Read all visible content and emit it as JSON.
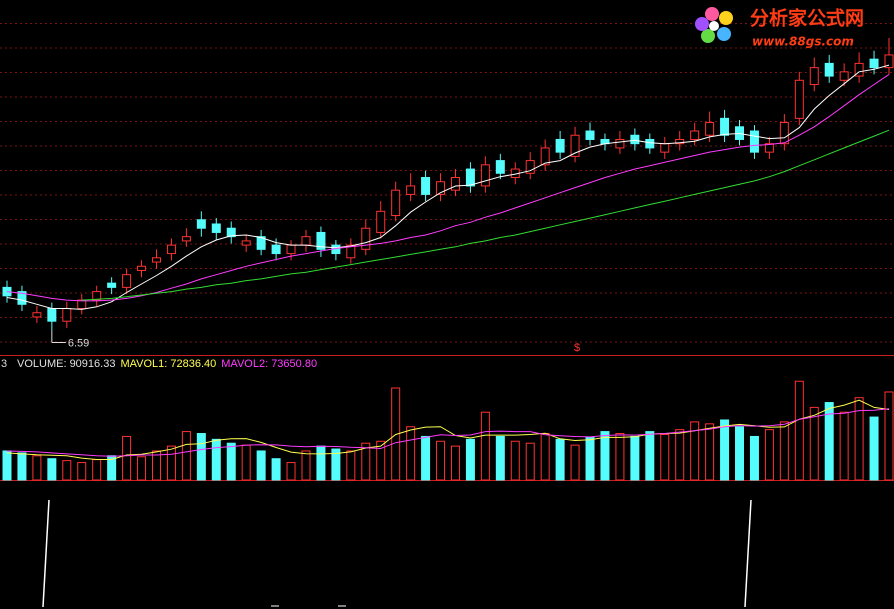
{
  "chart_data": {
    "type": "candlestick",
    "open": [
      7.1,
      7.05,
      6.75,
      6.85,
      6.7,
      6.85,
      6.95,
      7.15,
      7.1,
      7.3,
      7.4,
      7.5,
      7.65,
      7.9,
      7.85,
      7.8,
      7.6,
      7.7,
      7.6,
      7.5,
      7.6,
      7.75,
      7.6,
      7.45,
      7.55,
      7.75,
      7.95,
      8.2,
      8.4,
      8.2,
      8.25,
      8.5,
      8.3,
      8.6,
      8.4,
      8.45,
      8.55,
      8.85,
      8.65,
      8.95,
      8.85,
      8.75,
      8.9,
      8.85,
      8.7,
      8.8,
      8.85,
      8.9,
      9.1,
      9.0,
      8.95,
      8.7,
      8.8,
      9.1,
      9.5,
      9.75,
      9.55,
      9.6,
      9.8,
      9.7
    ],
    "high": [
      7.18,
      7.12,
      6.88,
      6.92,
      6.93,
      7.02,
      7.12,
      7.22,
      7.32,
      7.42,
      7.55,
      7.68,
      7.8,
      8.0,
      7.92,
      7.88,
      7.72,
      7.78,
      7.68,
      7.66,
      7.78,
      7.82,
      7.66,
      7.68,
      7.9,
      8.12,
      8.35,
      8.45,
      8.48,
      8.45,
      8.5,
      8.58,
      8.65,
      8.68,
      8.58,
      8.7,
      8.85,
      8.95,
      9.0,
      9.05,
      8.92,
      8.95,
      8.98,
      8.92,
      8.88,
      8.95,
      9.05,
      9.18,
      9.2,
      9.08,
      9.02,
      8.88,
      9.15,
      9.65,
      9.82,
      9.85,
      9.75,
      9.88,
      9.9,
      10.05
    ],
    "low": [
      6.92,
      6.82,
      6.68,
      6.59,
      6.62,
      6.78,
      6.88,
      7.02,
      7.02,
      7.22,
      7.32,
      7.42,
      7.58,
      7.7,
      7.66,
      7.62,
      7.52,
      7.48,
      7.42,
      7.42,
      7.52,
      7.46,
      7.42,
      7.38,
      7.48,
      7.68,
      7.88,
      8.12,
      8.12,
      8.12,
      8.18,
      8.22,
      8.22,
      8.38,
      8.32,
      8.38,
      8.48,
      8.62,
      8.58,
      8.78,
      8.72,
      8.68,
      8.72,
      8.68,
      8.62,
      8.72,
      8.78,
      8.82,
      8.82,
      8.78,
      8.62,
      8.62,
      8.72,
      9.02,
      9.42,
      9.52,
      9.48,
      9.52,
      9.62,
      9.62
    ],
    "close": [
      7.0,
      6.9,
      6.8,
      6.7,
      6.85,
      6.95,
      7.05,
      7.1,
      7.25,
      7.35,
      7.45,
      7.6,
      7.7,
      7.8,
      7.75,
      7.7,
      7.65,
      7.55,
      7.5,
      7.6,
      7.7,
      7.55,
      7.5,
      7.6,
      7.8,
      8.0,
      8.25,
      8.3,
      8.2,
      8.35,
      8.4,
      8.3,
      8.55,
      8.45,
      8.5,
      8.6,
      8.75,
      8.7,
      8.9,
      8.85,
      8.8,
      8.85,
      8.8,
      8.75,
      8.8,
      8.85,
      8.95,
      9.05,
      8.9,
      8.85,
      8.7,
      8.8,
      9.05,
      9.55,
      9.7,
      9.6,
      9.65,
      9.75,
      9.7,
      9.85
    ],
    "volume": [
      30000,
      28000,
      25000,
      22000,
      20000,
      18000,
      21000,
      25000,
      45000,
      24000,
      30000,
      35000,
      50000,
      48000,
      42000,
      38000,
      36000,
      30000,
      22000,
      18000,
      30000,
      35000,
      32000,
      30000,
      38000,
      40000,
      95000,
      55000,
      45000,
      40000,
      35000,
      42000,
      70000,
      45000,
      40000,
      38000,
      48000,
      42000,
      36000,
      44000,
      50000,
      48000,
      45000,
      50000,
      47000,
      52000,
      60000,
      58000,
      62000,
      55000,
      45000,
      52000,
      60000,
      102000,
      75000,
      80000,
      70000,
      85000,
      65000,
      90916.33
    ],
    "ma_lines": [
      {
        "color": "#ffffff",
        "values": [
          6.98,
          6.95,
          6.9,
          6.85,
          6.85,
          6.84,
          6.87,
          6.93,
          7.04,
          7.14,
          7.24,
          7.35,
          7.47,
          7.58,
          7.66,
          7.71,
          7.72,
          7.69,
          7.63,
          7.6,
          7.6,
          7.58,
          7.57,
          7.59,
          7.63,
          7.69,
          7.83,
          7.99,
          8.11,
          8.22,
          8.3,
          8.31,
          8.36,
          8.41,
          8.44,
          8.48,
          8.57,
          8.6,
          8.69,
          8.76,
          8.8,
          8.82,
          8.84,
          8.81,
          8.8,
          8.81,
          8.83,
          8.88,
          8.91,
          8.92,
          8.89,
          8.86,
          8.87,
          8.99,
          9.21,
          9.37,
          9.51,
          9.65,
          9.68,
          9.73
        ]
      },
      {
        "color": "#ff3cff",
        "values": [
          7.05,
          7.03,
          7.0,
          6.97,
          6.95,
          6.94,
          6.94,
          6.95,
          6.97,
          7.0,
          7.04,
          7.09,
          7.14,
          7.2,
          7.25,
          7.3,
          7.35,
          7.39,
          7.43,
          7.47,
          7.5,
          7.53,
          7.56,
          7.58,
          7.6,
          7.62,
          7.65,
          7.69,
          7.72,
          7.77,
          7.83,
          7.87,
          7.93,
          7.98,
          8.04,
          8.1,
          8.16,
          8.22,
          8.28,
          8.34,
          8.4,
          8.45,
          8.5,
          8.54,
          8.58,
          8.62,
          8.66,
          8.7,
          8.73,
          8.76,
          8.78,
          8.79,
          8.81,
          8.9,
          9.0,
          9.12,
          9.25,
          9.38,
          9.5,
          9.62
        ]
      },
      {
        "color": "#32dc32",
        "values": [
          null,
          null,
          null,
          null,
          null,
          6.95,
          6.96,
          6.97,
          6.99,
          7.01,
          7.03,
          7.05,
          7.08,
          7.1,
          7.13,
          7.15,
          7.18,
          7.2,
          7.23,
          7.26,
          7.28,
          7.31,
          7.34,
          7.37,
          7.4,
          7.43,
          7.46,
          7.49,
          7.52,
          7.55,
          7.58,
          7.62,
          7.65,
          7.69,
          7.72,
          7.76,
          7.8,
          7.84,
          7.88,
          7.92,
          7.96,
          8.0,
          8.04,
          8.08,
          8.12,
          8.16,
          8.2,
          8.24,
          8.28,
          8.32,
          8.36,
          8.41,
          8.47,
          8.54,
          8.61,
          8.68,
          8.75,
          8.82,
          8.89,
          8.96
        ]
      }
    ],
    "volume_ma_lines": [
      {
        "color": "#ffff50",
        "values": [
          28000,
          27000,
          26000,
          25500,
          25000,
          22600,
          21200,
          21200,
          25800,
          26600,
          29000,
          31800,
          36800,
          37400,
          41000,
          42600,
          42800,
          38800,
          33600,
          28800,
          27200,
          27000,
          27400,
          29000,
          33000,
          35000,
          47000,
          51600,
          54600,
          55000,
          46000,
          43400,
          46400,
          46400,
          46400,
          47000,
          48200,
          42600,
          40800,
          41600,
          44000,
          44000,
          44600,
          47400,
          48000,
          48400,
          50800,
          53400,
          55800,
          57400,
          56000,
          54400,
          54800,
          62800,
          66800,
          73800,
          77400,
          82400,
          75000,
          72836.4
        ]
      },
      {
        "color": "#ff3cff",
        "values": [
          30000,
          29500,
          29000,
          28000,
          27000,
          26000,
          25000,
          24500,
          25000,
          25800,
          25800,
          26500,
          29000,
          31500,
          33500,
          34500,
          36000,
          36500,
          36200,
          35000,
          34400,
          34800,
          34600,
          33800,
          33400,
          32500,
          38500,
          41300,
          44000,
          46800,
          46000,
          46500,
          50000,
          50500,
          50000,
          50000,
          46800,
          45800,
          44900,
          44500,
          46000,
          46600,
          46400,
          47200,
          48000,
          49500,
          51000,
          52600,
          55000,
          56200,
          55700,
          56100,
          57500,
          62600,
          65400,
          68200,
          69000,
          71700,
          72000,
          73650.8
        ]
      }
    ],
    "up_color": "#ff3232",
    "down_color": "#54fcfc",
    "ylim": [
      6.3,
      10.5
    ],
    "volume_ylim": [
      0,
      126000
    ],
    "low_label": 6.59,
    "marker": "$",
    "panel_number": "3",
    "indicator_labels": [
      {
        "text": "VOLUME: 90916.33",
        "color": "#e0e0e0"
      },
      {
        "text": "MAVOL1: 72836.40",
        "color": "#ffff50"
      },
      {
        "text": "MAVOL2: 73650.80",
        "color": "#ff3cff"
      }
    ]
  },
  "logo": {
    "title": "分析家公式网",
    "url": "www.88gs.com"
  }
}
